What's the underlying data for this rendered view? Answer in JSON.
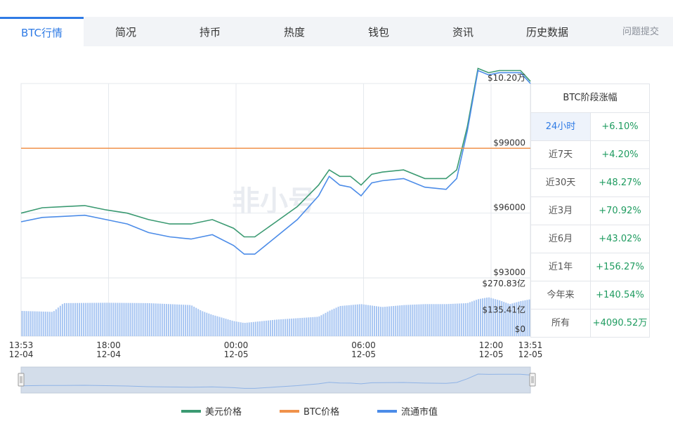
{
  "tabs": [
    {
      "label": "BTC行情",
      "active": true
    },
    {
      "label": "简况"
    },
    {
      "label": "持币"
    },
    {
      "label": "热度"
    },
    {
      "label": "钱包"
    },
    {
      "label": "资讯"
    },
    {
      "label": "历史数据"
    }
  ],
  "feedback_label": "问题提交",
  "watermark": "非小号",
  "side_table": {
    "title": "BTC阶段涨幅",
    "rows": [
      {
        "label": "24小时",
        "value": "+6.10%"
      },
      {
        "label": "近7天",
        "value": "+4.20%"
      },
      {
        "label": "近30天",
        "value": "+48.27%"
      },
      {
        "label": "近3月",
        "value": "+70.92%"
      },
      {
        "label": "近6月",
        "value": "+43.02%"
      },
      {
        "label": "近1年",
        "value": "+156.27%"
      },
      {
        "label": "今年来",
        "value": "+140.54%"
      },
      {
        "label": "所有",
        "value": "+4090.52万"
      }
    ]
  },
  "legend": [
    {
      "name": "美元价格",
      "color": "#3b9a72"
    },
    {
      "name": "BTC价格",
      "color": "#f0924b"
    },
    {
      "name": "流通市值",
      "color": "#4c8ce8"
    }
  ],
  "chart_data": {
    "type": "line",
    "x_ticks": [
      "13:53\n12-04",
      "18:00\n12-04",
      "00:00\n12-05",
      "06:00\n12-05",
      "12:00\n12-05",
      "13:51\n12-05"
    ],
    "x_tick_hours": [
      0,
      4.117,
      10.117,
      16.117,
      22.117,
      23.967
    ],
    "x_range_hours": [
      0,
      23.967
    ],
    "price_axis": {
      "ticks": [
        "$93000",
        "$96000",
        "$99000",
        "$10.20万"
      ],
      "tick_values": [
        93000,
        96000,
        99000,
        102000
      ],
      "range": [
        93000,
        102000
      ]
    },
    "volume_axis": {
      "ticks": [
        "$0",
        "$135.41亿",
        "$270.83亿"
      ],
      "tick_values": [
        0,
        135.41,
        270.83
      ],
      "unit": "亿"
    },
    "series": [
      {
        "name": "美元价格",
        "color": "#3b9a72",
        "x": [
          0,
          1,
          2,
          3,
          4,
          5,
          6,
          7,
          8,
          9,
          10,
          10.5,
          11,
          12,
          13,
          14,
          14.5,
          15,
          15.5,
          16,
          16.5,
          17,
          18,
          19,
          20,
          20.5,
          21,
          21.5,
          22,
          22.5,
          23,
          23.5,
          23.97
        ],
        "y": [
          96000,
          96250,
          96300,
          96350,
          96150,
          96000,
          95700,
          95500,
          95500,
          95700,
          95300,
          94900,
          94900,
          95600,
          96300,
          97300,
          98000,
          97700,
          97700,
          97300,
          97800,
          97900,
          98000,
          97600,
          97600,
          98000,
          100000,
          102700,
          102500,
          102600,
          102600,
          102600,
          102100
        ]
      },
      {
        "name": "流通市值",
        "color": "#4c8ce8",
        "x": [
          0,
          1,
          2,
          3,
          4,
          5,
          6,
          7,
          8,
          9,
          10,
          10.5,
          11,
          12,
          13,
          14,
          14.5,
          15,
          15.5,
          16,
          16.5,
          17,
          18,
          19,
          20,
          20.5,
          21,
          21.5,
          22,
          22.5,
          23,
          23.5,
          23.97
        ],
        "y": [
          95600,
          95800,
          95850,
          95900,
          95700,
          95500,
          95100,
          94900,
          94800,
          95000,
          94500,
          94100,
          94100,
          94900,
          95700,
          96800,
          97700,
          97300,
          97200,
          96800,
          97400,
          97500,
          97600,
          97200,
          97100,
          97600,
          99800,
          102600,
          102400,
          102500,
          102500,
          102500,
          102000
        ]
      },
      {
        "name": "BTC价格",
        "color": "#f0924b",
        "x": [
          0,
          23.97
        ],
        "y": [
          99000,
          99000
        ]
      }
    ],
    "volume": {
      "x": [
        0,
        1.5,
        2,
        4,
        6,
        8,
        8.5,
        9,
        10,
        10.5,
        12,
        14,
        14.5,
        15,
        16,
        17,
        18,
        19,
        20,
        21,
        21.5,
        22,
        22.5,
        23,
        23.5,
        23.97
      ],
      "values": [
        130,
        125,
        170,
        172,
        170,
        160,
        130,
        110,
        78,
        68,
        85,
        100,
        130,
        155,
        165,
        150,
        160,
        165,
        165,
        170,
        190,
        200,
        185,
        165,
        180,
        190
      ]
    },
    "grid": true
  }
}
